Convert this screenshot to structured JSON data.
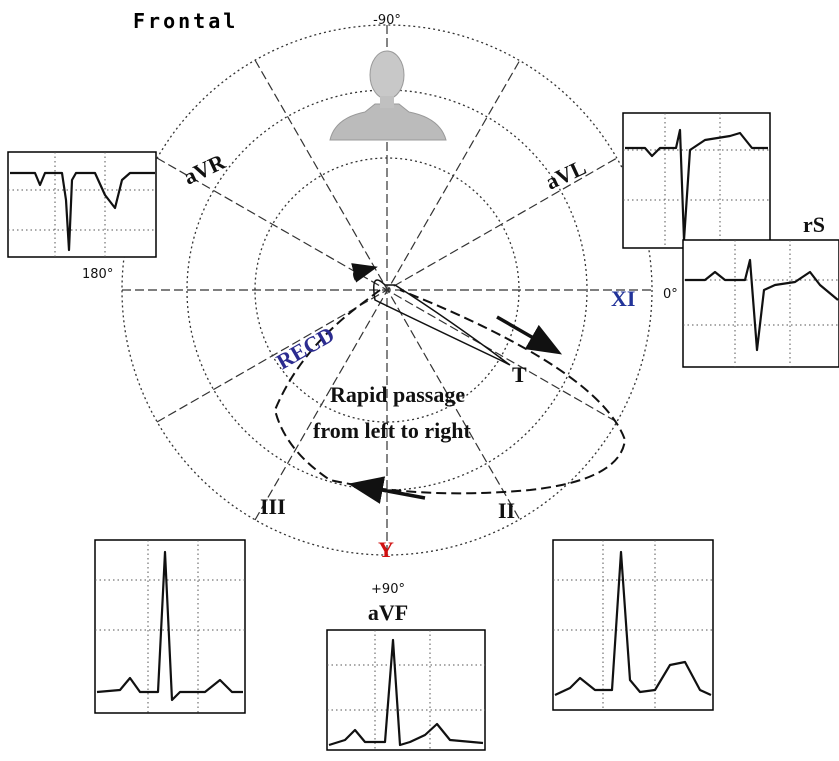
{
  "labels": {
    "frontal": "Frontal",
    "minus90": "-90°",
    "aVR": "aVR",
    "aVL": "aVL",
    "deg180": "180°",
    "XI": "XI",
    "deg0": "0°",
    "rS": "rS",
    "RECD": "RECD",
    "T": "T",
    "annotation_line1": "Rapid passage",
    "annotation_line2": "from left to right",
    "III": "III",
    "II": "II",
    "Y": "Y",
    "plus90": "+90°",
    "aVF": "aVF"
  }
}
